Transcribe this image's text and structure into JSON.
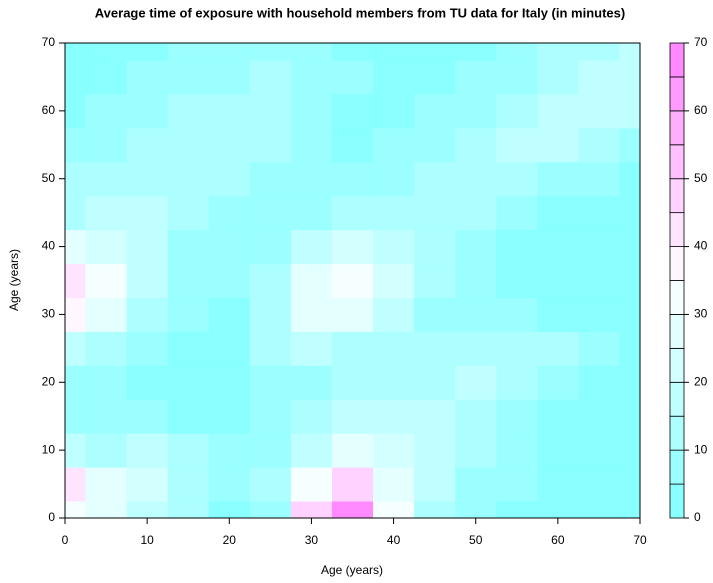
{
  "chart_data": {
    "type": "contour",
    "title": "Average time of exposure with household members from TU data for Italy (in minutes)",
    "x_label": "Age (years)",
    "y_label": "Age (years)",
    "x": [
      0,
      5,
      10,
      15,
      20,
      25,
      30,
      35,
      40,
      45,
      50,
      55,
      60,
      65,
      70
    ],
    "y": [
      0,
      5,
      10,
      15,
      20,
      25,
      30,
      35,
      40,
      45,
      50,
      55,
      60,
      65,
      70
    ],
    "z": [
      [
        30,
        25,
        15,
        10,
        3,
        8,
        45,
        68,
        30,
        12,
        6,
        4,
        3,
        2,
        2
      ],
      [
        40,
        28,
        20,
        10,
        5,
        10,
        30,
        45,
        25,
        15,
        8,
        5,
        3,
        2,
        2
      ],
      [
        15,
        12,
        15,
        10,
        5,
        8,
        15,
        25,
        20,
        15,
        10,
        6,
        3,
        2,
        2
      ],
      [
        8,
        6,
        5,
        4,
        3,
        5,
        10,
        15,
        15,
        15,
        12,
        8,
        4,
        2,
        2
      ],
      [
        6,
        5,
        4,
        3,
        3,
        5,
        8,
        10,
        12,
        14,
        15,
        12,
        8,
        4,
        2
      ],
      [
        15,
        12,
        8,
        4,
        3,
        10,
        15,
        12,
        10,
        10,
        12,
        12,
        10,
        5,
        2
      ],
      [
        38,
        25,
        12,
        5,
        4,
        12,
        25,
        25,
        15,
        8,
        6,
        5,
        4,
        3,
        2
      ],
      [
        42,
        30,
        15,
        6,
        5,
        10,
        25,
        32,
        20,
        10,
        5,
        4,
        3,
        2,
        2
      ],
      [
        25,
        20,
        15,
        8,
        6,
        8,
        15,
        20,
        18,
        12,
        6,
        4,
        3,
        2,
        2
      ],
      [
        12,
        15,
        15,
        12,
        8,
        6,
        8,
        10,
        12,
        12,
        10,
        6,
        4,
        3,
        2
      ],
      [
        10,
        12,
        12,
        12,
        10,
        8,
        6,
        6,
        8,
        10,
        12,
        10,
        8,
        5,
        3
      ],
      [
        6,
        8,
        10,
        12,
        12,
        10,
        6,
        4,
        5,
        8,
        10,
        15,
        15,
        12,
        8
      ],
      [
        4,
        6,
        8,
        10,
        12,
        12,
        8,
        4,
        3,
        5,
        8,
        12,
        15,
        18,
        15
      ],
      [
        3,
        4,
        5,
        6,
        8,
        10,
        8,
        5,
        3,
        3,
        5,
        8,
        12,
        15,
        18
      ],
      [
        2,
        3,
        4,
        5,
        6,
        6,
        5,
        4,
        3,
        3,
        4,
        6,
        10,
        14,
        18
      ]
    ],
    "levels": [
      0,
      5,
      10,
      15,
      20,
      25,
      30,
      35,
      40,
      45,
      50,
      55,
      60,
      65,
      70
    ],
    "colors": [
      "#80ffff",
      "#ffffff",
      "#ff80ff"
    ],
    "xlim": [
      0,
      70
    ],
    "ylim": [
      0,
      70
    ],
    "xticks": [
      0,
      10,
      20,
      30,
      40,
      50,
      60,
      70
    ],
    "yticks": [
      0,
      10,
      20,
      30,
      40,
      50,
      60,
      70
    ],
    "zlim": [
      0,
      70
    ],
    "zticks": [
      0,
      10,
      20,
      30,
      40,
      50,
      60,
      70
    ]
  }
}
